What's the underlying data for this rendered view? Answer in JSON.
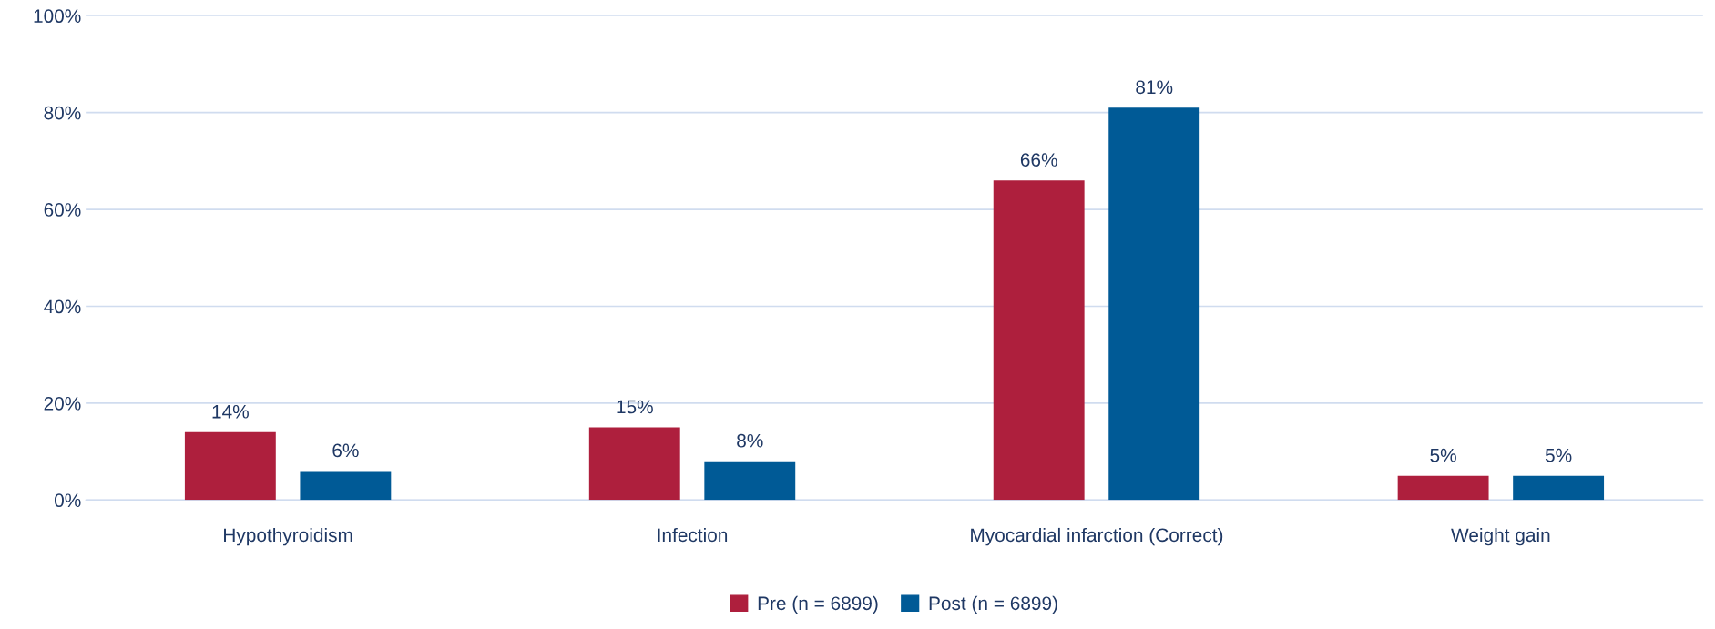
{
  "chart_data": {
    "type": "bar",
    "categories": [
      "Hypothyroidism",
      "Infection",
      "Myocardial infarction (Correct)",
      "Weight gain"
    ],
    "series": [
      {
        "name": "Pre (n = 6899)",
        "color": "#ae1f3d",
        "values": [
          14,
          15,
          66,
          5
        ],
        "value_labels": [
          "14%",
          "15%",
          "66%",
          "5%"
        ]
      },
      {
        "name": "Post (n = 6899)",
        "color": "#005a96",
        "values": [
          6,
          8,
          81,
          5
        ],
        "value_labels": [
          "6%",
          "8%",
          "81%",
          "5%"
        ]
      }
    ],
    "ylim": [
      0,
      100
    ],
    "yticks": [
      {
        "value": 0,
        "label": "0%"
      },
      {
        "value": 20,
        "label": "20%"
      },
      {
        "value": 40,
        "label": "40%"
      },
      {
        "value": 60,
        "label": "60%"
      },
      {
        "value": 80,
        "label": "80%"
      },
      {
        "value": 100,
        "label": "100%"
      }
    ],
    "grid": "y",
    "legend": "bottom"
  }
}
